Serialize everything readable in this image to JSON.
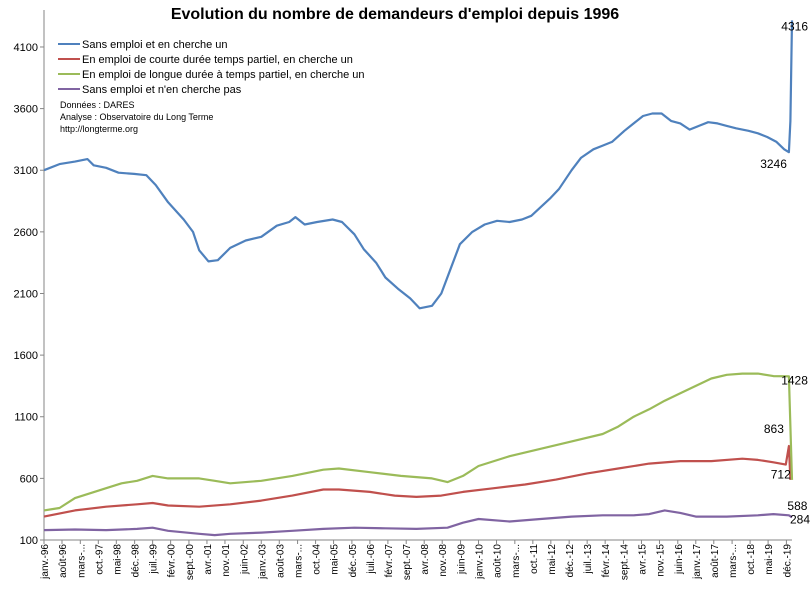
{
  "chart_data": {
    "type": "line",
    "title": "Evolution du nombre de demandeurs d'emploi depuis 1996",
    "source_notes": [
      "Données : DARES",
      "Analyse : Observatoire du Long Terme",
      "http://longterme.org"
    ],
    "ylim": [
      100,
      4400
    ],
    "yticks": [
      100,
      600,
      1100,
      1600,
      2100,
      2600,
      3100,
      3600,
      4100
    ],
    "xlim": [
      1996.0,
      2020.1
    ],
    "grid": false,
    "legend_position": "top-left",
    "x_tick_labels": [
      {
        "label": "janv.-96",
        "x": 1996.0
      },
      {
        "label": "août-96",
        "x": 1996.58
      },
      {
        "label": "mars-...",
        "x": 1997.17
      },
      {
        "label": "oct.-97",
        "x": 1997.75
      },
      {
        "label": "mai-98",
        "x": 1998.33
      },
      {
        "label": "déc.-98",
        "x": 1998.92
      },
      {
        "label": "juil.-99",
        "x": 1999.5
      },
      {
        "label": "févr.-00",
        "x": 2000.08
      },
      {
        "label": "sept.-00",
        "x": 2000.67
      },
      {
        "label": "avr.-01",
        "x": 2001.25
      },
      {
        "label": "nov.-01",
        "x": 2001.83
      },
      {
        "label": "juin-02",
        "x": 2002.42
      },
      {
        "label": "janv.-03",
        "x": 2003.0
      },
      {
        "label": "août-03",
        "x": 2003.58
      },
      {
        "label": "mars-...",
        "x": 2004.17
      },
      {
        "label": "oct.-04",
        "x": 2004.75
      },
      {
        "label": "mai-05",
        "x": 2005.33
      },
      {
        "label": "déc.-05",
        "x": 2005.92
      },
      {
        "label": "juil.-06",
        "x": 2006.5
      },
      {
        "label": "févr.-07",
        "x": 2007.08
      },
      {
        "label": "sept.-07",
        "x": 2007.67
      },
      {
        "label": "avr.-08",
        "x": 2008.25
      },
      {
        "label": "nov.-08",
        "x": 2008.83
      },
      {
        "label": "juin-09",
        "x": 2009.42
      },
      {
        "label": "janv.-10",
        "x": 2010.0
      },
      {
        "label": "août-10",
        "x": 2010.58
      },
      {
        "label": "mars-...",
        "x": 2011.17
      },
      {
        "label": "oct.-11",
        "x": 2011.75
      },
      {
        "label": "mai-12",
        "x": 2012.33
      },
      {
        "label": "déc.-12",
        "x": 2012.92
      },
      {
        "label": "juil.-13",
        "x": 2013.5
      },
      {
        "label": "févr.-14",
        "x": 2014.08
      },
      {
        "label": "sept.-14",
        "x": 2014.67
      },
      {
        "label": "avr.-15",
        "x": 2015.25
      },
      {
        "label": "nov.-15",
        "x": 2015.83
      },
      {
        "label": "juin-16",
        "x": 2016.42
      },
      {
        "label": "janv.-17",
        "x": 2017.0
      },
      {
        "label": "août-17",
        "x": 2017.58
      },
      {
        "label": "mars-...",
        "x": 2018.17
      },
      {
        "label": "oct.-18",
        "x": 2018.75
      },
      {
        "label": "mai-19",
        "x": 2019.33
      },
      {
        "label": "déc.-19",
        "x": 2019.92
      }
    ],
    "series": [
      {
        "name": "Sans emploi et en cherche un",
        "color": "#4f81bd",
        "points": [
          [
            1996.0,
            3100
          ],
          [
            1996.5,
            3150
          ],
          [
            1997.0,
            3170
          ],
          [
            1997.4,
            3190
          ],
          [
            1997.6,
            3140
          ],
          [
            1998.0,
            3120
          ],
          [
            1998.4,
            3080
          ],
          [
            1998.9,
            3070
          ],
          [
            1999.3,
            3060
          ],
          [
            1999.6,
            2980
          ],
          [
            2000.0,
            2840
          ],
          [
            2000.5,
            2700
          ],
          [
            2000.8,
            2600
          ],
          [
            2001.0,
            2450
          ],
          [
            2001.3,
            2360
          ],
          [
            2001.6,
            2370
          ],
          [
            2002.0,
            2470
          ],
          [
            2002.5,
            2530
          ],
          [
            2003.0,
            2560
          ],
          [
            2003.5,
            2650
          ],
          [
            2003.9,
            2680
          ],
          [
            2004.1,
            2720
          ],
          [
            2004.4,
            2660
          ],
          [
            2004.8,
            2680
          ],
          [
            2005.3,
            2700
          ],
          [
            2005.6,
            2680
          ],
          [
            2006.0,
            2580
          ],
          [
            2006.3,
            2460
          ],
          [
            2006.7,
            2350
          ],
          [
            2007.0,
            2230
          ],
          [
            2007.4,
            2140
          ],
          [
            2007.8,
            2060
          ],
          [
            2008.1,
            1980
          ],
          [
            2008.5,
            2000
          ],
          [
            2008.8,
            2100
          ],
          [
            2009.1,
            2300
          ],
          [
            2009.4,
            2500
          ],
          [
            2009.8,
            2600
          ],
          [
            2010.2,
            2660
          ],
          [
            2010.6,
            2690
          ],
          [
            2011.0,
            2680
          ],
          [
            2011.4,
            2700
          ],
          [
            2011.7,
            2730
          ],
          [
            2012.0,
            2800
          ],
          [
            2012.3,
            2870
          ],
          [
            2012.6,
            2950
          ],
          [
            2013.0,
            3100
          ],
          [
            2013.3,
            3200
          ],
          [
            2013.7,
            3270
          ],
          [
            2014.0,
            3300
          ],
          [
            2014.3,
            3330
          ],
          [
            2014.7,
            3420
          ],
          [
            2015.0,
            3480
          ],
          [
            2015.3,
            3540
          ],
          [
            2015.6,
            3560
          ],
          [
            2015.9,
            3560
          ],
          [
            2016.2,
            3500
          ],
          [
            2016.5,
            3480
          ],
          [
            2016.8,
            3430
          ],
          [
            2017.1,
            3460
          ],
          [
            2017.4,
            3490
          ],
          [
            2017.7,
            3480
          ],
          [
            2018.0,
            3460
          ],
          [
            2018.3,
            3440
          ],
          [
            2018.7,
            3420
          ],
          [
            2019.0,
            3400
          ],
          [
            2019.3,
            3370
          ],
          [
            2019.6,
            3330
          ],
          [
            2019.85,
            3270
          ],
          [
            2020.0,
            3246
          ],
          [
            2020.05,
            3500
          ],
          [
            2020.1,
            4316
          ]
        ],
        "end_labels": [
          {
            "text": "3246",
            "x": 2020.0,
            "y": 3246
          },
          {
            "text": "4316",
            "x": 2020.1,
            "y": 4316
          }
        ]
      },
      {
        "name": "En emploi de courte durée temps partiel, en cherche un",
        "color": "#c0504d",
        "points": [
          [
            1996.0,
            290
          ],
          [
            1997.0,
            340
          ],
          [
            1998.0,
            370
          ],
          [
            1999.0,
            390
          ],
          [
            1999.5,
            400
          ],
          [
            2000.0,
            380
          ],
          [
            2001.0,
            370
          ],
          [
            2002.0,
            390
          ],
          [
            2003.0,
            420
          ],
          [
            2004.0,
            460
          ],
          [
            2005.0,
            510
          ],
          [
            2005.5,
            510
          ],
          [
            2006.5,
            490
          ],
          [
            2007.3,
            460
          ],
          [
            2008.0,
            450
          ],
          [
            2008.8,
            460
          ],
          [
            2009.5,
            490
          ],
          [
            2010.5,
            520
          ],
          [
            2011.5,
            550
          ],
          [
            2012.5,
            590
          ],
          [
            2013.5,
            640
          ],
          [
            2014.5,
            680
          ],
          [
            2015.5,
            720
          ],
          [
            2016.5,
            740
          ],
          [
            2017.5,
            740
          ],
          [
            2018.5,
            760
          ],
          [
            2019.0,
            750
          ],
          [
            2019.5,
            730
          ],
          [
            2019.9,
            712
          ],
          [
            2020.0,
            863
          ],
          [
            2020.05,
            588
          ]
        ],
        "end_labels": [
          {
            "text": "712",
            "x": 2019.9,
            "y": 712
          },
          {
            "text": "863",
            "x": 2020.0,
            "y": 863
          },
          {
            "text": "588",
            "x": 2020.05,
            "y": 588
          }
        ]
      },
      {
        "name": "En emploi de longue durée à temps partiel, en cherche un",
        "color": "#9bbb59",
        "points": [
          [
            1996.0,
            340
          ],
          [
            1996.5,
            360
          ],
          [
            1997.0,
            440
          ],
          [
            1998.0,
            520
          ],
          [
            1998.5,
            560
          ],
          [
            1999.0,
            580
          ],
          [
            1999.5,
            620
          ],
          [
            2000.0,
            600
          ],
          [
            2001.0,
            600
          ],
          [
            2001.5,
            580
          ],
          [
            2002.0,
            560
          ],
          [
            2003.0,
            580
          ],
          [
            2004.0,
            620
          ],
          [
            2005.0,
            670
          ],
          [
            2005.5,
            680
          ],
          [
            2006.5,
            650
          ],
          [
            2007.5,
            620
          ],
          [
            2008.5,
            600
          ],
          [
            2009.0,
            570
          ],
          [
            2009.5,
            620
          ],
          [
            2010.0,
            700
          ],
          [
            2011.0,
            780
          ],
          [
            2012.0,
            840
          ],
          [
            2013.0,
            900
          ],
          [
            2014.0,
            960
          ],
          [
            2014.5,
            1020
          ],
          [
            2015.0,
            1100
          ],
          [
            2015.5,
            1160
          ],
          [
            2016.0,
            1230
          ],
          [
            2016.5,
            1290
          ],
          [
            2017.0,
            1350
          ],
          [
            2017.5,
            1410
          ],
          [
            2018.0,
            1440
          ],
          [
            2018.5,
            1450
          ],
          [
            2019.0,
            1450
          ],
          [
            2019.5,
            1430
          ],
          [
            2020.0,
            1428
          ],
          [
            2020.1,
            588
          ]
        ],
        "end_labels": [
          {
            "text": "1428",
            "x": 2020.0,
            "y": 1428
          }
        ]
      },
      {
        "name": "Sans emploi et n'en cherche pas",
        "color": "#8064a2",
        "points": [
          [
            1996.0,
            180
          ],
          [
            1997.0,
            185
          ],
          [
            1998.0,
            180
          ],
          [
            1999.0,
            190
          ],
          [
            1999.5,
            200
          ],
          [
            2000.0,
            175
          ],
          [
            2001.0,
            150
          ],
          [
            2001.5,
            140
          ],
          [
            2002.0,
            150
          ],
          [
            2003.0,
            160
          ],
          [
            2004.0,
            175
          ],
          [
            2005.0,
            190
          ],
          [
            2006.0,
            200
          ],
          [
            2007.0,
            195
          ],
          [
            2008.0,
            190
          ],
          [
            2009.0,
            200
          ],
          [
            2009.5,
            240
          ],
          [
            2010.0,
            270
          ],
          [
            2011.0,
            250
          ],
          [
            2012.0,
            270
          ],
          [
            2013.0,
            290
          ],
          [
            2014.0,
            300
          ],
          [
            2015.0,
            300
          ],
          [
            2015.5,
            310
          ],
          [
            2016.0,
            340
          ],
          [
            2016.5,
            320
          ],
          [
            2017.0,
            290
          ],
          [
            2018.0,
            290
          ],
          [
            2019.0,
            300
          ],
          [
            2019.5,
            310
          ],
          [
            2020.0,
            300
          ],
          [
            2020.1,
            284
          ]
        ],
        "end_labels": [
          {
            "text": "284",
            "x": 2020.1,
            "y": 284
          }
        ]
      }
    ]
  }
}
